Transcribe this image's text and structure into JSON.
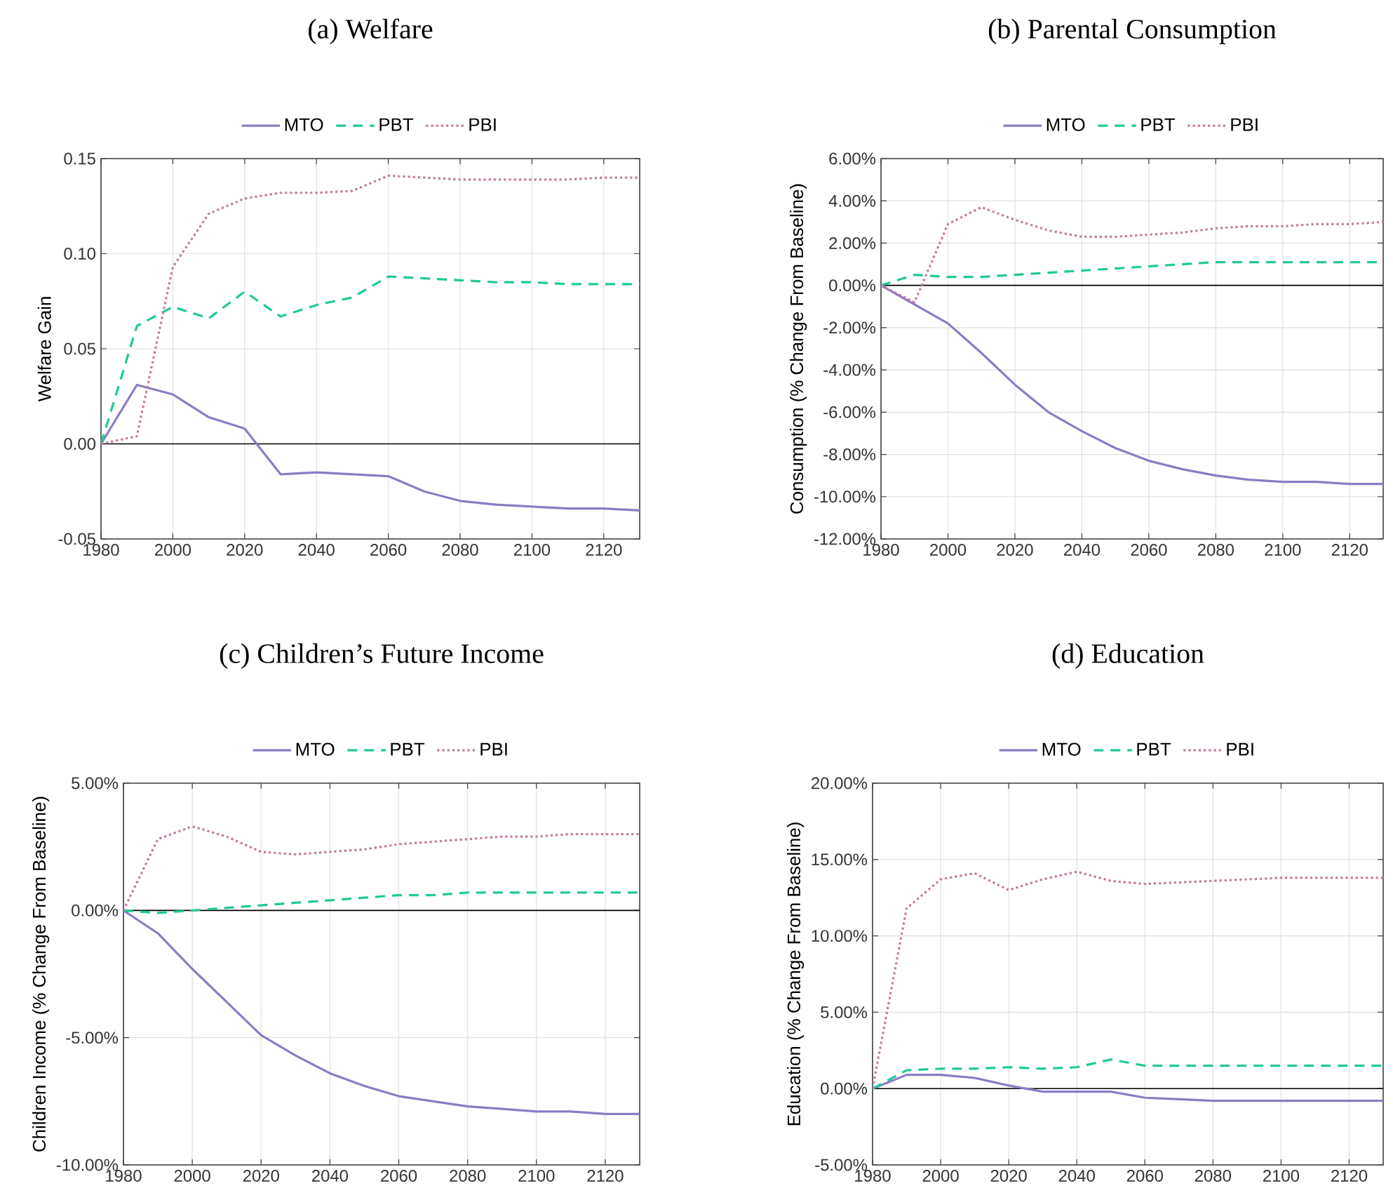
{
  "chart_data": [
    {
      "type": "line",
      "title": "(a) Welfare",
      "ylabel": "Welfare Gain",
      "x": [
        1980,
        1990,
        2000,
        2010,
        2020,
        2030,
        2040,
        2050,
        2060,
        2070,
        2080,
        2090,
        2100,
        2110,
        2120,
        2130
      ],
      "xlim": [
        1980,
        2130
      ],
      "xticks": [
        1980,
        2000,
        2020,
        2040,
        2060,
        2080,
        2100,
        2120
      ],
      "ylim": [
        -0.05,
        0.15
      ],
      "yticks": [
        {
          "value": -0.05,
          "label": "-0.05"
        },
        {
          "value": 0,
          "label": "0.00"
        },
        {
          "value": 0.05,
          "label": "0.05"
        },
        {
          "value": 0.1,
          "label": "0.10"
        },
        {
          "value": 0.15,
          "label": "0.15"
        }
      ],
      "grid": true,
      "legend": "top",
      "ref_lines": [
        {
          "axis": "y",
          "value": 0,
          "color": "#000000"
        }
      ],
      "series": [
        {
          "name": "MTO",
          "color": "#8c7cc4",
          "line_style": "solid",
          "values": [
            0,
            0.031,
            0.026,
            0.014,
            0.008,
            -0.016,
            -0.015,
            -0.016,
            -0.017,
            -0.025,
            -0.03,
            -0.032,
            -0.033,
            -0.034,
            -0.034,
            -0.035
          ]
        },
        {
          "name": "PBT",
          "color": "#1ec99a",
          "line_style": "dashed",
          "values": [
            0,
            0.062,
            0.072,
            0.066,
            0.08,
            0.067,
            0.073,
            0.077,
            0.088,
            0.087,
            0.086,
            0.085,
            0.085,
            0.084,
            0.084,
            0.084
          ]
        },
        {
          "name": "PBI",
          "color": "#c47aa0",
          "line_style": "dotted",
          "values": [
            0,
            0.004,
            0.093,
            0.121,
            0.129,
            0.132,
            0.132,
            0.133,
            0.141,
            0.14,
            0.139,
            0.139,
            0.139,
            0.139,
            0.14,
            0.14
          ]
        }
      ]
    },
    {
      "type": "line",
      "title": "(b) Parental Consumption",
      "ylabel": "Consumption (% Change From Baseline)",
      "x": [
        1980,
        1990,
        2000,
        2010,
        2020,
        2030,
        2040,
        2050,
        2060,
        2070,
        2080,
        2090,
        2100,
        2110,
        2120,
        2130
      ],
      "xlim": [
        1980,
        2130
      ],
      "xticks": [
        1980,
        2000,
        2020,
        2040,
        2060,
        2080,
        2100,
        2120
      ],
      "ylim": [
        -12,
        6
      ],
      "yticks": [
        {
          "value": -12,
          "label": "-12.00%"
        },
        {
          "value": -10,
          "label": "-10.00%"
        },
        {
          "value": -8,
          "label": "-8.00%"
        },
        {
          "value": -6,
          "label": "-6.00%"
        },
        {
          "value": -4,
          "label": "-4.00%"
        },
        {
          "value": -2,
          "label": "-2.00%"
        },
        {
          "value": 0,
          "label": "0.00%"
        },
        {
          "value": 2,
          "label": "2.00%"
        },
        {
          "value": 4,
          "label": "4.00%"
        },
        {
          "value": 6,
          "label": "6.00%"
        }
      ],
      "grid": true,
      "legend": "top",
      "ref_lines": [
        {
          "axis": "y",
          "value": 0,
          "color": "#000000"
        }
      ],
      "series": [
        {
          "name": "MTO",
          "color": "#8c7cc4",
          "line_style": "solid",
          "values": [
            0,
            -0.9,
            -1.8,
            -3.2,
            -4.7,
            -6.0,
            -6.9,
            -7.7,
            -8.3,
            -8.7,
            -9.0,
            -9.2,
            -9.3,
            -9.3,
            -9.4,
            -9.4
          ]
        },
        {
          "name": "PBT",
          "color": "#1ec99a",
          "line_style": "dashed",
          "values": [
            0,
            0.5,
            0.4,
            0.4,
            0.5,
            0.6,
            0.7,
            0.8,
            0.9,
            1.0,
            1.1,
            1.1,
            1.1,
            1.1,
            1.1,
            1.1
          ]
        },
        {
          "name": "PBI",
          "color": "#c47aa0",
          "line_style": "dotted",
          "values": [
            0,
            -0.8,
            2.9,
            3.7,
            3.1,
            2.6,
            2.3,
            2.3,
            2.4,
            2.5,
            2.7,
            2.8,
            2.8,
            2.9,
            2.9,
            3.0
          ]
        }
      ]
    },
    {
      "type": "line",
      "title": "(c) Children’s Future Income",
      "ylabel": "Children Income (% Change From Baseline)",
      "x": [
        1980,
        1990,
        2000,
        2010,
        2020,
        2030,
        2040,
        2050,
        2060,
        2070,
        2080,
        2090,
        2100,
        2110,
        2120,
        2130
      ],
      "xlim": [
        1980,
        2130
      ],
      "xticks": [
        1980,
        2000,
        2020,
        2040,
        2060,
        2080,
        2100,
        2120
      ],
      "ylim": [
        -10,
        5
      ],
      "yticks": [
        {
          "value": -10,
          "label": "-10.00%"
        },
        {
          "value": -5,
          "label": "-5.00%"
        },
        {
          "value": 0,
          "label": "0.00%"
        },
        {
          "value": 5,
          "label": "5.00%"
        }
      ],
      "grid": true,
      "legend": "top",
      "ref_lines": [
        {
          "axis": "y",
          "value": 0,
          "color": "#000000"
        }
      ],
      "series": [
        {
          "name": "MTO",
          "color": "#8c7cc4",
          "line_style": "solid",
          "values": [
            0,
            -0.9,
            -2.3,
            -3.6,
            -4.9,
            -5.7,
            -6.4,
            -6.9,
            -7.3,
            -7.5,
            -7.7,
            -7.8,
            -7.9,
            -7.9,
            -8.0,
            -8.0
          ]
        },
        {
          "name": "PBT",
          "color": "#1ec99a",
          "line_style": "dashed",
          "values": [
            0,
            -0.1,
            0,
            0.1,
            0.2,
            0.3,
            0.4,
            0.5,
            0.6,
            0.6,
            0.7,
            0.7,
            0.7,
            0.7,
            0.7,
            0.7
          ]
        },
        {
          "name": "PBI",
          "color": "#c47aa0",
          "line_style": "dotted",
          "values": [
            0,
            2.8,
            3.3,
            2.9,
            2.3,
            2.2,
            2.3,
            2.4,
            2.6,
            2.7,
            2.8,
            2.9,
            2.9,
            3.0,
            3.0,
            3.0
          ]
        }
      ]
    },
    {
      "type": "line",
      "title": "(d) Education",
      "ylabel": "Education (% Change From Baseline)",
      "x": [
        1980,
        1990,
        2000,
        2010,
        2020,
        2030,
        2040,
        2050,
        2060,
        2070,
        2080,
        2090,
        2100,
        2110,
        2120,
        2130
      ],
      "xlim": [
        1980,
        2130
      ],
      "xticks": [
        1980,
        2000,
        2020,
        2040,
        2060,
        2080,
        2100,
        2120
      ],
      "ylim": [
        -5,
        20
      ],
      "yticks": [
        {
          "value": -5,
          "label": "-5.00%"
        },
        {
          "value": 0,
          "label": "0.00%"
        },
        {
          "value": 5,
          "label": "5.00%"
        },
        {
          "value": 10,
          "label": "10.00%"
        },
        {
          "value": 15,
          "label": "15.00%"
        },
        {
          "value": 20,
          "label": "20.00%"
        }
      ],
      "grid": true,
      "legend": "top",
      "ref_lines": [
        {
          "axis": "y",
          "value": 0,
          "color": "#000000"
        }
      ],
      "series": [
        {
          "name": "MTO",
          "color": "#8c7cc4",
          "line_style": "solid",
          "values": [
            0,
            0.9,
            0.9,
            0.7,
            0.2,
            -0.2,
            -0.2,
            -0.2,
            -0.6,
            -0.7,
            -0.8,
            -0.8,
            -0.8,
            -0.8,
            -0.8,
            -0.8
          ]
        },
        {
          "name": "PBT",
          "color": "#1ec99a",
          "line_style": "dashed",
          "values": [
            0,
            1.2,
            1.3,
            1.3,
            1.4,
            1.3,
            1.4,
            1.9,
            1.5,
            1.5,
            1.5,
            1.5,
            1.5,
            1.5,
            1.5,
            1.5
          ]
        },
        {
          "name": "PBI",
          "color": "#c47aa0",
          "line_style": "dotted",
          "values": [
            0,
            11.8,
            13.7,
            14.1,
            13.0,
            13.7,
            14.2,
            13.6,
            13.4,
            13.5,
            13.6,
            13.7,
            13.8,
            13.8,
            13.8,
            13.8
          ]
        }
      ]
    }
  ]
}
